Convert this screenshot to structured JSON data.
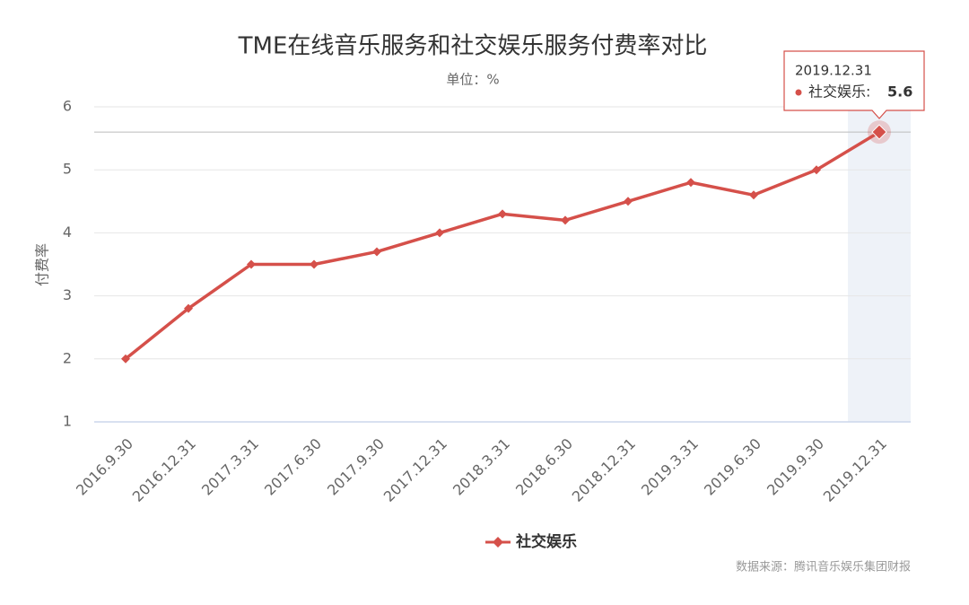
{
  "chart_data": {
    "type": "line",
    "title": "TME在线音乐服务和社交娱乐服务付费率对比",
    "subtitle": "单位：%",
    "y_label": "付费率",
    "categories": [
      "2016.9.30",
      "2016.12.31",
      "2017.3.31",
      "2017.6.30",
      "2017.9.30",
      "2017.12.31",
      "2018.3.31",
      "2018.6.30",
      "2018.12.31",
      "2019.3.31",
      "2019.6.30",
      "2019.9.30",
      "2019.12.31"
    ],
    "series": [
      {
        "name": "社交娱乐",
        "color": "#d5504a",
        "values": [
          2.0,
          2.8,
          3.5,
          3.5,
          3.7,
          4.0,
          4.3,
          4.2,
          4.5,
          4.8,
          4.6,
          5.0,
          5.6
        ]
      }
    ],
    "ylim": [
      1,
      6
    ],
    "yticks": [
      1,
      2,
      3,
      4,
      5,
      6
    ],
    "grid": true,
    "legend": "bottom",
    "source": "数据来源：腾讯音乐娱乐集团财报",
    "tooltip": {
      "header": "2019.12.31",
      "label": "社交娱乐:",
      "value": 5.6
    }
  }
}
